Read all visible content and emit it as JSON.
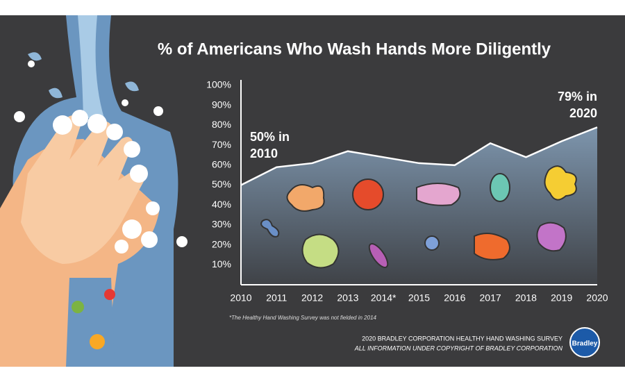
{
  "chart_data": {
    "type": "area",
    "title": "% of Americans Who Wash Hands More Diligently",
    "categories": [
      "2010",
      "2011",
      "2012",
      "2013",
      "2014*",
      "2015",
      "2016",
      "2017",
      "2018",
      "2019",
      "2020"
    ],
    "values": [
      50,
      59,
      61,
      67,
      64,
      61,
      60,
      71,
      64,
      72,
      79
    ],
    "ylim": [
      0,
      100
    ],
    "yticks": [
      {
        "value": 10,
        "label": "10%"
      },
      {
        "value": 20,
        "label": "20%"
      },
      {
        "value": 30,
        "label": "30%"
      },
      {
        "value": 40,
        "label": "40%"
      },
      {
        "value": 50,
        "label": "50%"
      },
      {
        "value": 60,
        "label": "60%"
      },
      {
        "value": 70,
        "label": "70%"
      },
      {
        "value": 80,
        "label": "80%"
      },
      {
        "value": 90,
        "label": "90%"
      },
      {
        "value": 100,
        "label": "100%"
      }
    ],
    "color": "#7d95ad",
    "annotations": [
      [
        "50% in",
        "2010"
      ],
      [
        "79% in",
        "2020"
      ]
    ],
    "footnote": "*The Healthy Hand Washing Survey  was not fielded in 2014",
    "source": [
      "2020 BRADLEY CORPORATION HEALTHY HAND WASHING SURVEY",
      "ALL INFORMATION UNDER COPYRIGHT OF BRADLEY CORPORATION"
    ],
    "logo": "Bradley"
  }
}
